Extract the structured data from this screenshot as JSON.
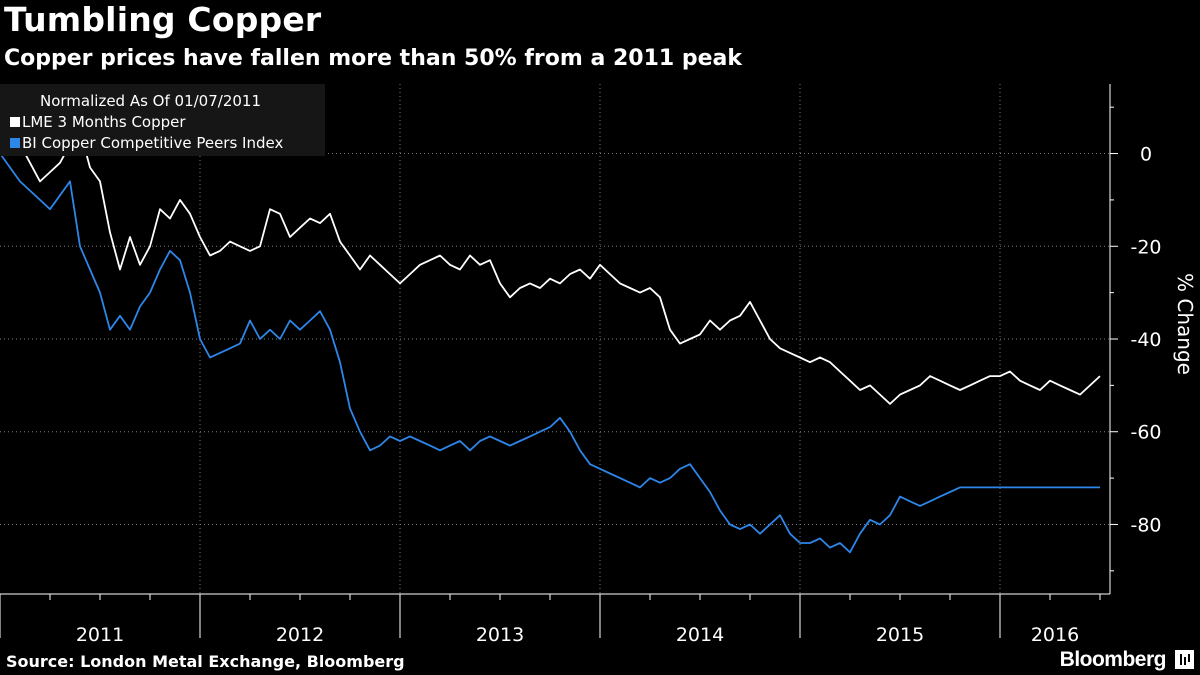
{
  "header": {
    "title": "Tumbling Copper",
    "subtitle": "Copper prices have fallen more than 50% from a 2011 peak"
  },
  "footer": {
    "source": "Source: London Metal Exchange, Bloomberg",
    "brand": "Bloomberg"
  },
  "legend": {
    "heading": "Normalized As Of 01/07/2011"
  },
  "colors": {
    "background": "#000000",
    "lme": "#ffffff",
    "peers": "#2e86e8"
  },
  "chart_data": {
    "type": "line",
    "title": "Tumbling Copper",
    "subtitle": "Copper prices have fallen more than 50% from a 2011 peak",
    "ylabel": "% Change",
    "ylim": [
      -95,
      15
    ],
    "yticks": [
      0,
      -20,
      -40,
      -60,
      -80
    ],
    "ytick_labels": [
      "0",
      "-20",
      "-40",
      "-60",
      "-80"
    ],
    "xlim": [
      2011.0,
      2016.55
    ],
    "xtick_labels": [
      "2011",
      "2012",
      "2013",
      "2014",
      "2015",
      "2016"
    ],
    "legend_position": "top-left",
    "series": [
      {
        "name": "LME 3 Months Copper",
        "color": "#ffffff",
        "x": [
          2011.0,
          2011.05,
          2011.1,
          2011.15,
          2011.2,
          2011.25,
          2011.3,
          2011.35,
          2011.4,
          2011.45,
          2011.5,
          2011.55,
          2011.6,
          2011.65,
          2011.7,
          2011.75,
          2011.8,
          2011.85,
          2011.9,
          2011.95,
          2012.0,
          2012.05,
          2012.1,
          2012.15,
          2012.2,
          2012.25,
          2012.3,
          2012.35,
          2012.4,
          2012.45,
          2012.5,
          2012.55,
          2012.6,
          2012.65,
          2012.7,
          2012.75,
          2012.8,
          2012.85,
          2012.9,
          2012.95,
          2013.0,
          2013.05,
          2013.1,
          2013.15,
          2013.2,
          2013.25,
          2013.3,
          2013.35,
          2013.4,
          2013.45,
          2013.5,
          2013.55,
          2013.6,
          2013.65,
          2013.7,
          2013.75,
          2013.8,
          2013.85,
          2013.9,
          2013.95,
          2014.0,
          2014.05,
          2014.1,
          2014.15,
          2014.2,
          2014.25,
          2014.3,
          2014.35,
          2014.4,
          2014.45,
          2014.5,
          2014.55,
          2014.6,
          2014.65,
          2014.7,
          2014.75,
          2014.8,
          2014.85,
          2014.9,
          2014.95,
          2015.0,
          2015.05,
          2015.1,
          2015.15,
          2015.2,
          2015.25,
          2015.3,
          2015.35,
          2015.4,
          2015.45,
          2015.5,
          2015.55,
          2015.6,
          2015.65,
          2015.7,
          2015.75,
          2015.8,
          2015.85,
          2015.9,
          2015.95,
          2016.0,
          2016.05,
          2016.1,
          2016.15,
          2016.2,
          2016.25,
          2016.3,
          2016.35,
          2016.4,
          2016.45,
          2016.5
        ],
        "y": [
          0,
          4,
          2,
          -2,
          -6,
          -4,
          -2,
          2,
          5,
          -3,
          -6,
          -17,
          -25,
          -18,
          -24,
          -20,
          -12,
          -14,
          -10,
          -13,
          -18,
          -22,
          -21,
          -19,
          -20,
          -21,
          -20,
          -12,
          -13,
          -18,
          -16,
          -14,
          -15,
          -13,
          -19,
          -22,
          -25,
          -22,
          -24,
          -26,
          -28,
          -26,
          -24,
          -23,
          -22,
          -24,
          -25,
          -22,
          -24,
          -23,
          -28,
          -31,
          -29,
          -28,
          -29,
          -27,
          -28,
          -26,
          -25,
          -27,
          -24,
          -26,
          -28,
          -29,
          -30,
          -29,
          -31,
          -38,
          -41,
          -40,
          -39,
          -36,
          -38,
          -36,
          -35,
          -32,
          -36,
          -40,
          -42,
          -43,
          -44,
          -45,
          -44,
          -45,
          -47,
          -49,
          -51,
          -50,
          -52,
          -54,
          -52,
          -51,
          -50,
          -48,
          -49,
          -50,
          -51,
          -50,
          -49,
          -48,
          -48,
          -47,
          -49,
          -50,
          -51,
          -49,
          -50,
          -51,
          -52,
          -50,
          -48
        ]
      },
      {
        "name": "BI Copper Competitive Peers Index",
        "color": "#2e86e8",
        "x": [
          2011.0,
          2011.05,
          2011.1,
          2011.15,
          2011.2,
          2011.25,
          2011.3,
          2011.35,
          2011.4,
          2011.45,
          2011.5,
          2011.55,
          2011.6,
          2011.65,
          2011.7,
          2011.75,
          2011.8,
          2011.85,
          2011.9,
          2011.95,
          2012.0,
          2012.05,
          2012.1,
          2012.15,
          2012.2,
          2012.25,
          2012.3,
          2012.35,
          2012.4,
          2012.45,
          2012.5,
          2012.55,
          2012.6,
          2012.65,
          2012.7,
          2012.75,
          2012.8,
          2012.85,
          2012.9,
          2012.95,
          2013.0,
          2013.05,
          2013.1,
          2013.15,
          2013.2,
          2013.25,
          2013.3,
          2013.35,
          2013.4,
          2013.45,
          2013.5,
          2013.55,
          2013.6,
          2013.65,
          2013.7,
          2013.75,
          2013.8,
          2013.85,
          2013.9,
          2013.95,
          2014.0,
          2014.05,
          2014.1,
          2014.15,
          2014.2,
          2014.25,
          2014.3,
          2014.35,
          2014.4,
          2014.45,
          2014.5,
          2014.55,
          2014.6,
          2014.65,
          2014.7,
          2014.75,
          2014.8,
          2014.85,
          2014.9,
          2014.95,
          2015.0,
          2015.05,
          2015.1,
          2015.15,
          2015.2,
          2015.25,
          2015.3,
          2015.35,
          2015.4,
          2015.45,
          2015.5,
          2015.55,
          2015.6,
          2015.65,
          2015.7,
          2015.75,
          2015.8,
          2015.85,
          2015.9,
          2015.95,
          2016.0,
          2016.05,
          2016.1,
          2016.15,
          2016.2,
          2016.25,
          2016.3,
          2016.35,
          2016.4,
          2016.45,
          2016.5
        ],
        "y": [
          0,
          -3,
          -6,
          -8,
          -10,
          -12,
          -9,
          -6,
          -20,
          -25,
          -30,
          -38,
          -35,
          -38,
          -33,
          -30,
          -25,
          -21,
          -23,
          -30,
          -40,
          -44,
          -43,
          -42,
          -41,
          -36,
          -40,
          -38,
          -40,
          -36,
          -38,
          -36,
          -34,
          -38,
          -45,
          -55,
          -60,
          -64,
          -63,
          -61,
          -62,
          -61,
          -62,
          -63,
          -64,
          -63,
          -62,
          -64,
          -62,
          -61,
          -62,
          -63,
          -62,
          -61,
          -60,
          -59,
          -57,
          -60,
          -64,
          -67,
          -68,
          -69,
          -70,
          -71,
          -72,
          -70,
          -71,
          -70,
          -68,
          -67,
          -70,
          -73,
          -77,
          -80,
          -81,
          -80,
          -82,
          -80,
          -78,
          -82,
          -84,
          -84,
          -83,
          -85,
          -84,
          -86,
          -82,
          -79,
          -80,
          -78,
          -74,
          -75,
          -76,
          -75,
          -74,
          -73,
          -72,
          -72,
          -72,
          -72,
          -72,
          -72,
          -72,
          -72,
          -72,
          -72,
          -72,
          -72,
          -72,
          -72,
          -72
        ]
      }
    ]
  }
}
